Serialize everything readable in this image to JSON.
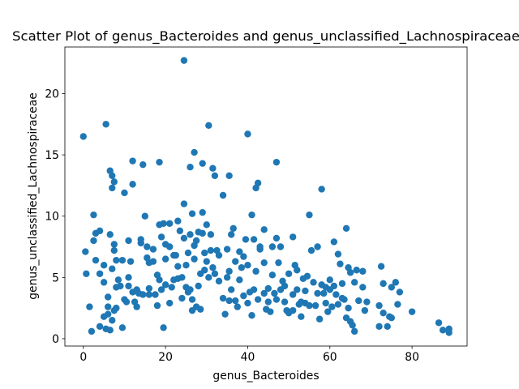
{
  "chart_data": {
    "type": "scatter",
    "title": "Scatter Plot of genus_Bacteroides and genus_unclassified_Lachnospiraceae",
    "x_label": "genus_Bacteroides",
    "y_label": "genus_unclassified_Lachnospiraceae",
    "color": "#1f77b4",
    "xlim": [
      -4.5,
      93.4
    ],
    "ylim": [
      -0.6,
      23.8
    ],
    "xticks": [
      0,
      20,
      40,
      60,
      80
    ],
    "yticks": [
      0,
      5,
      10,
      15,
      20
    ],
    "x": [
      0,
      0.5,
      0.7,
      1.5,
      2,
      2.5,
      2.5,
      3,
      3,
      4,
      4,
      4,
      5,
      5,
      5,
      5.5,
      5.5,
      6,
      6,
      6,
      6.5,
      6.5,
      6.5,
      7,
      7,
      7,
      7,
      7.5,
      7.5,
      7.5,
      7.5,
      8,
      8,
      8,
      8.5,
      9,
      9.5,
      9.5,
      10,
      10,
      10.5,
      11,
      11,
      11,
      11.5,
      12,
      12,
      12,
      12.5,
      13,
      13,
      13.5,
      14,
      14,
      14.5,
      14.5,
      15,
      15.5,
      15.5,
      16,
      16,
      16,
      17,
      17,
      17.5,
      18,
      18,
      18.5,
      18.5,
      18.5,
      19,
      19,
      19.5,
      19.5,
      20,
      20,
      20,
      21,
      21,
      21,
      21.5,
      22,
      22,
      22.5,
      23,
      23,
      23,
      23.5,
      24,
      24,
      24.5,
      24.5,
      24.5,
      25,
      25,
      25.5,
      25.5,
      26,
      26,
      26,
      26.5,
      26.5,
      26.5,
      27,
      27,
      27,
      27.5,
      27.5,
      28,
      28,
      28.5,
      28.5,
      29,
      29,
      29,
      29.5,
      29.5,
      30,
      30,
      30.5,
      30.5,
      31,
      31,
      31.5,
      31.5,
      32,
      32,
      32.5,
      33,
      33,
      34,
      34,
      34.5,
      35,
      35,
      35.5,
      35.5,
      35.5,
      36,
      36,
      36.5,
      37,
      37,
      37.5,
      38,
      38,
      38.5,
      39,
      39,
      39.5,
      40,
      40,
      40,
      40.5,
      41,
      41,
      41.5,
      41.5,
      42,
      42,
      42.5,
      42.5,
      43,
      43,
      44,
      44,
      44,
      44.5,
      45,
      45,
      45.5,
      46,
      46,
      46.5,
      47,
      47,
      47,
      47.5,
      48,
      48,
      48.5,
      49,
      49,
      49.5,
      50,
      50,
      51,
      51,
      51,
      51.5,
      52,
      52,
      52.5,
      53,
      53,
      53.5,
      54,
      54,
      54.5,
      55,
      55,
      55.5,
      56,
      56.5,
      57,
      57,
      57.5,
      58,
      58,
      58.5,
      59,
      59,
      59.5,
      60,
      60,
      60.5,
      61,
      61,
      61.5,
      62,
      62,
      62.5,
      63,
      63,
      63.5,
      64,
      64,
      64.5,
      64.5,
      65,
      65,
      65.5,
      66,
      66,
      66.5,
      67,
      68,
      68,
      68.5,
      69,
      72,
      72,
      72.5,
      73,
      73,
      74,
      74.5,
      75,
      75,
      76,
      76.5,
      77,
      80,
      86.5,
      87.5,
      89,
      89
    ],
    "values": [
      16.5,
      7.1,
      5.3,
      2.6,
      0.6,
      10.1,
      8,
      8.6,
      6.4,
      8.8,
      5.3,
      1,
      4.6,
      6,
      1.8,
      17.5,
      0.8,
      3.4,
      2.6,
      2,
      13.7,
      8.5,
      0.7,
      13.3,
      12.3,
      5.7,
      1.5,
      12.8,
      7.7,
      7.2,
      2.3,
      6.4,
      4.2,
      2.5,
      4.8,
      4.3,
      6.4,
      0.9,
      11.9,
      3.2,
      3,
      8,
      5,
      4.3,
      6.3,
      14.5,
      12.6,
      3.8,
      3,
      4,
      2.6,
      3.7,
      7.8,
      8.1,
      14.2,
      3.6,
      10,
      7.5,
      6.6,
      6.2,
      4.1,
      3.6,
      7.3,
      6.3,
      3.6,
      5.2,
      2.7,
      14.4,
      9.3,
      4.8,
      8.3,
      4,
      9.4,
      0.9,
      7.7,
      6.5,
      4.4,
      9.4,
      7.5,
      2.9,
      4.2,
      6.8,
      4.8,
      6.8,
      9.6,
      5.9,
      4.9,
      8.8,
      5,
      3.3,
      22.7,
      11,
      8.2,
      6,
      4.2,
      7,
      3.8,
      14,
      8.5,
      4,
      10.2,
      3.2,
      2.3,
      15.2,
      7.6,
      6.5,
      8,
      2.6,
      8.7,
      4.3,
      5.3,
      2.4,
      14.3,
      10.3,
      8.6,
      5.6,
      7,
      9.3,
      6.3,
      17.4,
      5,
      8.5,
      7.2,
      13.9,
      5.8,
      13.3,
      5.3,
      7.2,
      6.8,
      4.7,
      11.7,
      3.3,
      2,
      7.3,
      5,
      13.3,
      5.5,
      3.1,
      8.5,
      4,
      9,
      6.3,
      3.1,
      2.6,
      7.1,
      4.8,
      5.8,
      6.7,
      3.5,
      8.1,
      16.7,
      6,
      2.9,
      3.8,
      10.1,
      1.9,
      8.1,
      4,
      12.3,
      5.5,
      12.7,
      3.2,
      7.3,
      7.5,
      8.9,
      6.2,
      3.7,
      2.4,
      4.1,
      3,
      2.2,
      7.5,
      5.2,
      3.7,
      14.4,
      8.2,
      3.2,
      6.2,
      7.5,
      4,
      4.7,
      4.3,
      3,
      2.3,
      5.3,
      2.1,
      8.3,
      3.6,
      2.3,
      6,
      5.6,
      4,
      2.8,
      3,
      1.8,
      4.9,
      3.9,
      2.9,
      5.1,
      10.1,
      2.7,
      7.2,
      4.6,
      2.7,
      7.5,
      3.7,
      1.6,
      12.2,
      4.4,
      3.7,
      4.2,
      2.9,
      2.2,
      4.8,
      4,
      2.6,
      7.9,
      4.3,
      3.6,
      6.9,
      2.8,
      6.1,
      4.5,
      3.3,
      3.2,
      9,
      1.7,
      5.8,
      2.5,
      5.4,
      1.4,
      1.1,
      4.6,
      0.6,
      5.6,
      3.1,
      4.2,
      5.5,
      2.3,
      3,
      1,
      2.7,
      5.9,
      4.5,
      2.1,
      1,
      1.8,
      4.2,
      1.7,
      4.6,
      2.8,
      3.8,
      2.2,
      1.3,
      0.7,
      0.8,
      0.5
    ]
  }
}
